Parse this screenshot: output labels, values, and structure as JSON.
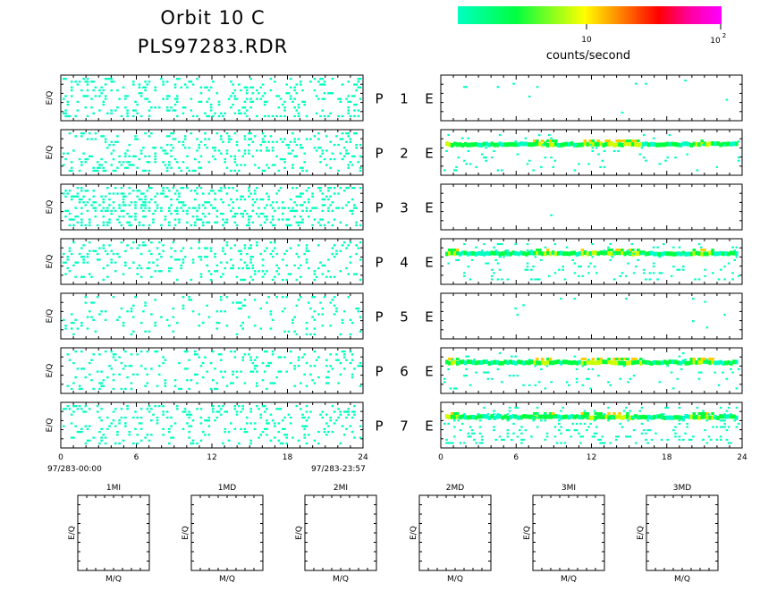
{
  "header": {
    "title_line1": "Orbit 10 C",
    "title_line2": "PLS97283.RDR"
  },
  "colorbar": {
    "tick_low": "10",
    "tick_high": "10",
    "tick_high_exp": "2",
    "label": "counts/second",
    "colors": [
      "#00ffc0",
      "#00ff40",
      "#ffff00",
      "#ff8000",
      "#ff0000",
      "#ff00ff"
    ]
  },
  "chart_data": {
    "type": "heatmap",
    "panel_ylabel": "E/Q",
    "xlim": [
      0,
      24
    ],
    "x_ticks": [
      "0",
      "6",
      "12",
      "18",
      "24"
    ],
    "start_time": "97/283-00:00",
    "end_time": "97/283-23:57",
    "rows": [
      {
        "p_label": "P",
        "num": "1",
        "e_label": "E",
        "left_density": 0.3,
        "right_density": 0.03,
        "right_band": 0.0
      },
      {
        "p_label": "P",
        "num": "2",
        "e_label": "E",
        "left_density": 0.3,
        "right_density": 0.08,
        "right_band": 0.75
      },
      {
        "p_label": "P",
        "num": "3",
        "e_label": "E",
        "left_density": 0.38,
        "right_density": 0.01,
        "right_band": 0.0
      },
      {
        "p_label": "P",
        "num": "4",
        "e_label": "E",
        "left_density": 0.24,
        "right_density": 0.14,
        "right_band": 0.55
      },
      {
        "p_label": "P",
        "num": "5",
        "e_label": "E",
        "left_density": 0.14,
        "right_density": 0.04,
        "right_band": 0.0
      },
      {
        "p_label": "P",
        "num": "6",
        "e_label": "E",
        "left_density": 0.22,
        "right_density": 0.08,
        "right_band": 0.65
      },
      {
        "p_label": "P",
        "num": "7",
        "e_label": "E",
        "left_density": 0.26,
        "right_density": 0.22,
        "right_band": 0.45
      }
    ],
    "small_panels": [
      {
        "title": "1MI",
        "xlabel": "M/Q",
        "ylabel": "E/Q"
      },
      {
        "title": "1MD",
        "xlabel": "M/Q",
        "ylabel": "E/Q"
      },
      {
        "title": "2MI",
        "xlabel": "M/Q",
        "ylabel": "E/Q"
      },
      {
        "title": "2MD",
        "xlabel": "M/Q",
        "ylabel": "E/Q"
      },
      {
        "title": "3MI",
        "xlabel": "M/Q",
        "ylabel": "E/Q"
      },
      {
        "title": "3MD",
        "xlabel": "M/Q",
        "ylabel": "E/Q"
      }
    ]
  }
}
